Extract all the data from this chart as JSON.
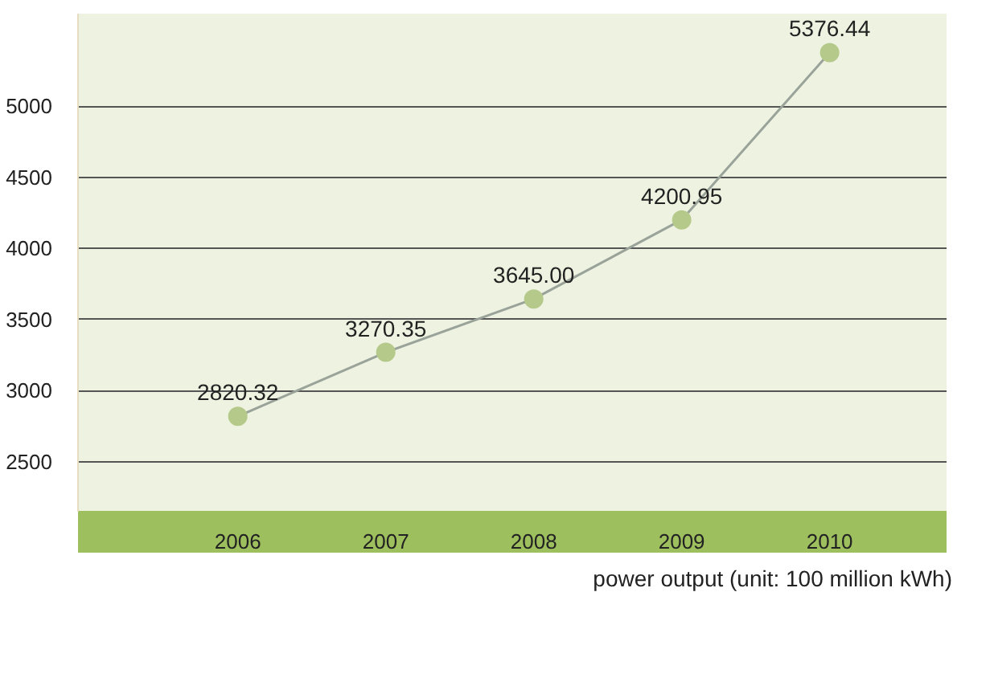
{
  "chart_data": {
    "type": "line",
    "categories": [
      "2006",
      "2007",
      "2008",
      "2009",
      "2010"
    ],
    "series": [
      {
        "name": "power output (unit: 100 million kWh)",
        "color": "#b5c98a",
        "values": [
          2820.32,
          3270.35,
          3645.0,
          4200.95,
          5376.44
        ]
      }
    ],
    "value_labels": [
      "2820.32",
      "3270.35",
      "3645.00",
      "4200.95",
      "5376.44"
    ],
    "ylim": [
      2150,
      5650
    ],
    "yticks": [
      2500,
      3000,
      3500,
      4000,
      4500,
      5000
    ],
    "grid": "y",
    "legend": "bottom right",
    "marker": "circle",
    "line_style": "solid"
  }
}
